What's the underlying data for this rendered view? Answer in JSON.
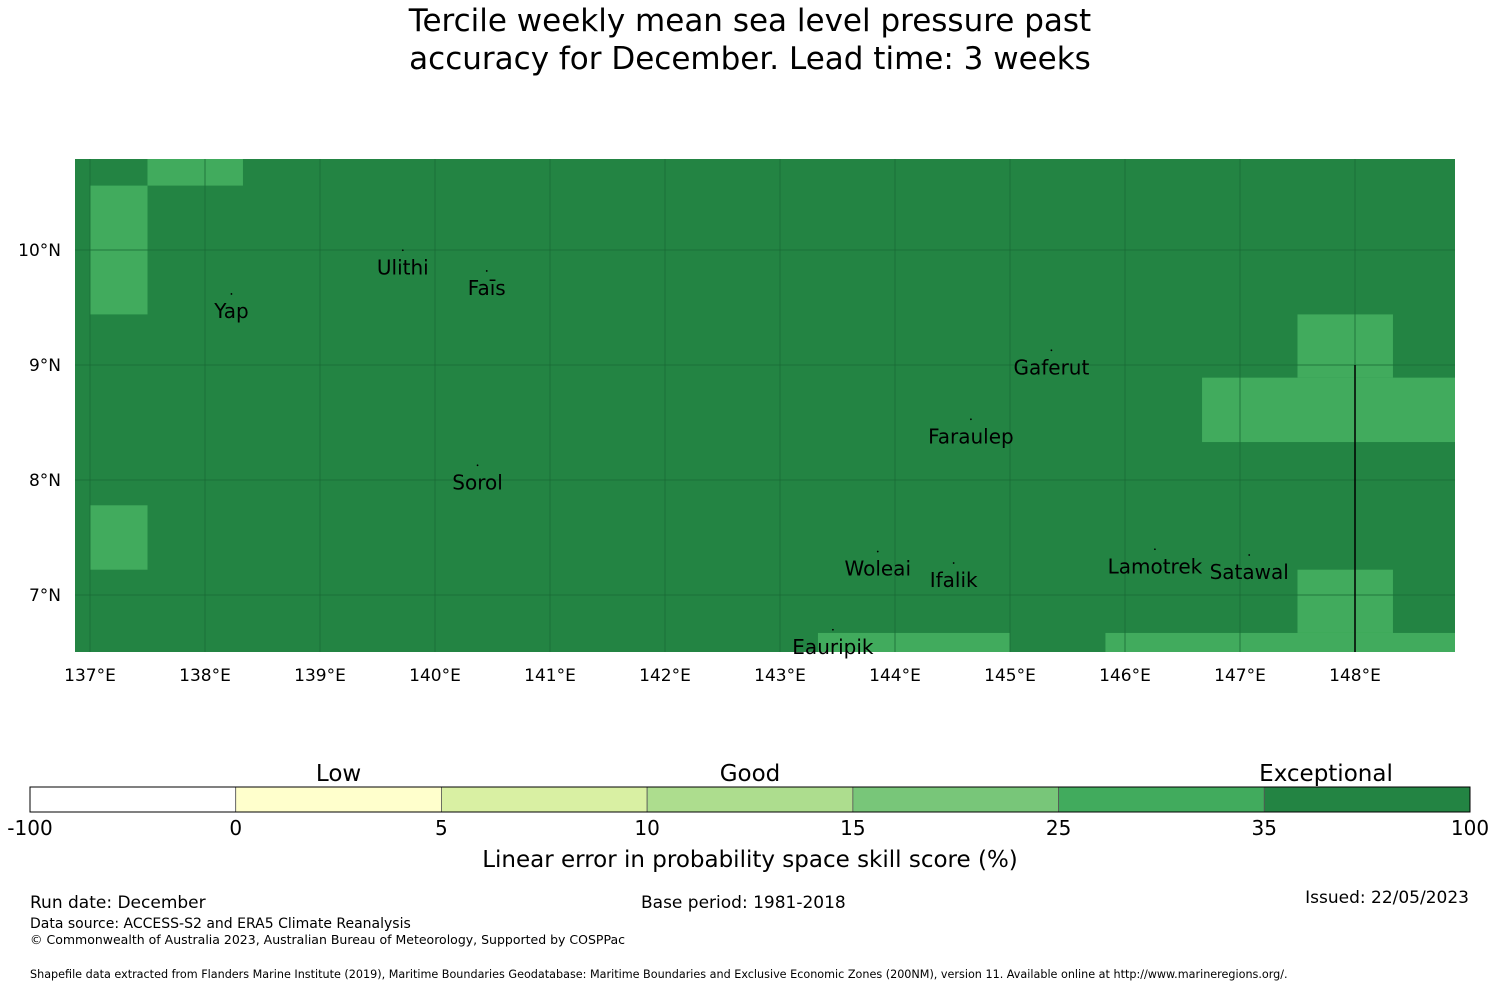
{
  "title": {
    "line1": "Tercile weekly mean sea level pressure past",
    "line2": "accuracy for December. Lead time: 3 weeks"
  },
  "map": {
    "lon_range": [
      137,
      149
    ],
    "lat_range": [
      6.5,
      10.8
    ],
    "colors": {
      "exceptional": "#238443",
      "good_high": "#41ab5d",
      "grid": "#1a6b36"
    },
    "x_ticks": [
      {
        "value": 137,
        "label": "137°E"
      },
      {
        "value": 138,
        "label": "138°E"
      },
      {
        "value": 139,
        "label": "139°E"
      },
      {
        "value": 140,
        "label": "140°E"
      },
      {
        "value": 141,
        "label": "141°E"
      },
      {
        "value": 142,
        "label": "142°E"
      },
      {
        "value": 143,
        "label": "143°E"
      },
      {
        "value": 144,
        "label": "144°E"
      },
      {
        "value": 145,
        "label": "145°E"
      },
      {
        "value": 146,
        "label": "146°E"
      },
      {
        "value": 147,
        "label": "147°E"
      },
      {
        "value": 148,
        "label": "148°E"
      }
    ],
    "y_ticks": [
      {
        "value": 10,
        "label": "10°N"
      },
      {
        "value": 9,
        "label": "9°N"
      },
      {
        "value": 8,
        "label": "8°N"
      },
      {
        "value": 7,
        "label": "7°N"
      }
    ],
    "skill_patches": [
      {
        "lon": [
          137.5,
          138.33
        ],
        "lat": [
          10.56,
          10.8
        ],
        "category": "25-35"
      },
      {
        "lon": [
          137.0,
          137.5
        ],
        "lat": [
          9.44,
          10.56
        ],
        "category": "25-35"
      },
      {
        "lon": [
          137.0,
          137.5
        ],
        "lat": [
          7.22,
          7.78
        ],
        "category": "25-35"
      },
      {
        "lon": [
          147.5,
          148.33
        ],
        "lat": [
          8.89,
          9.44
        ],
        "category": "25-35"
      },
      {
        "lon": [
          146.67,
          149.0
        ],
        "lat": [
          8.33,
          8.89
        ],
        "category": "25-35"
      },
      {
        "lon": [
          147.5,
          148.33
        ],
        "lat": [
          6.67,
          7.22
        ],
        "category": "25-35"
      },
      {
        "lon": [
          143.33,
          145.0
        ],
        "lat": [
          6.5,
          6.67
        ],
        "category": "25-35"
      },
      {
        "lon": [
          145.83,
          149.0
        ],
        "lat": [
          6.5,
          6.67
        ],
        "category": "25-35"
      }
    ],
    "boundary_line": {
      "lon": 148.0,
      "lat": [
        6.5,
        9.0
      ]
    },
    "places": [
      {
        "name": "Ulithi",
        "lon": 139.72,
        "lat": 9.85
      },
      {
        "name": "Faīs",
        "lon": 140.45,
        "lat": 9.67
      },
      {
        "name": "Yap",
        "lon": 138.23,
        "lat": 9.47
      },
      {
        "name": "Gaferut",
        "lon": 145.36,
        "lat": 8.98
      },
      {
        "name": "Faraulep",
        "lon": 144.66,
        "lat": 8.38
      },
      {
        "name": "Sorol",
        "lon": 140.37,
        "lat": 7.98
      },
      {
        "name": "Woleai",
        "lon": 143.85,
        "lat": 7.23
      },
      {
        "name": "Ifalik",
        "lon": 144.51,
        "lat": 7.13
      },
      {
        "name": "Lamotrek",
        "lon": 146.26,
        "lat": 7.25
      },
      {
        "name": "Satawal",
        "lon": 147.08,
        "lat": 7.2
      },
      {
        "name": "Eauripik",
        "lon": 143.46,
        "lat": 6.55
      }
    ]
  },
  "colorbar": {
    "categories": [
      {
        "label": "Low",
        "position": 1.5
      },
      {
        "label": "Good",
        "position": 3.5
      },
      {
        "label": "Exceptional",
        "position": 6.3
      }
    ],
    "segments": [
      {
        "from": "-100",
        "to": "0",
        "color": "#ffffff"
      },
      {
        "from": "0",
        "to": "5",
        "color": "#ffffcc"
      },
      {
        "from": "5",
        "to": "10",
        "color": "#d9f0a3"
      },
      {
        "from": "10",
        "to": "15",
        "color": "#addd8e"
      },
      {
        "from": "15",
        "to": "25",
        "color": "#78c679"
      },
      {
        "from": "25",
        "to": "35",
        "color": "#41ab5d"
      },
      {
        "from": "35",
        "to": "100",
        "color": "#238443"
      }
    ],
    "tick_labels": [
      "-100",
      "0",
      "5",
      "10",
      "15",
      "25",
      "35",
      "100"
    ],
    "axis_label": "Linear error in probability space skill score (%)"
  },
  "footer": {
    "run_date": "Run date: December",
    "base_period": "Base period: 1981-2018",
    "issued": "Issued: 22/05/2023",
    "data_source": "Data source: ACCESS-S2 and ERA5 Climate Reanalysis",
    "copyright": "© Commonwealth of Australia 2023, Australian Bureau of Meteorology, Supported by COSPPac",
    "shapefile": "Shapefile data extracted from Flanders Marine Institute (2019), Maritime Boundaries Geodatabase: Maritime Boundaries and Exclusive Economic Zones (200NM), version 11. Available online at http://www.marineregions.org/."
  }
}
